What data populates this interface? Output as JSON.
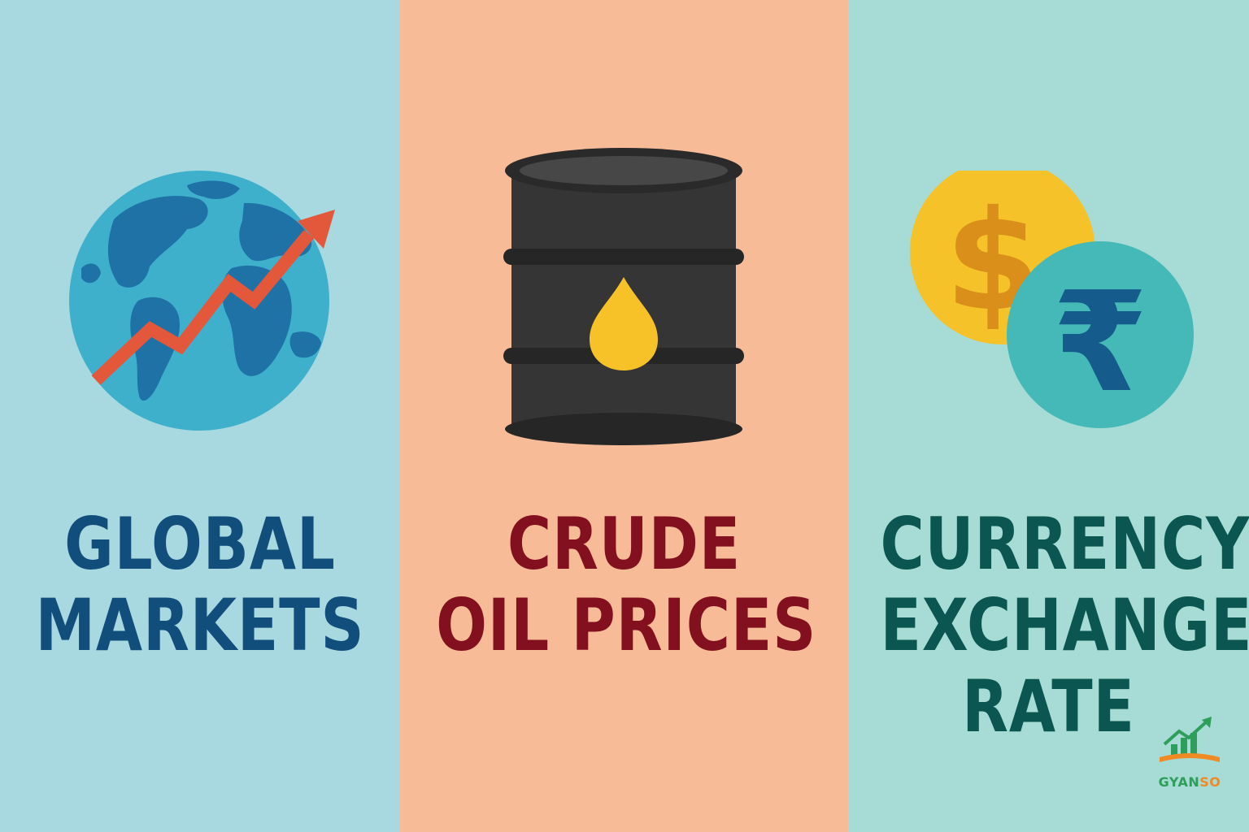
{
  "panels": [
    {
      "id": "global-markets",
      "background": "#a8d9e0",
      "icon": "globe-with-rising-arrow-icon",
      "title_lines": [
        "GLOBAL",
        "MARKETS"
      ],
      "title_color": "#124e7c"
    },
    {
      "id": "crude-oil",
      "background": "#f7bc97",
      "icon": "oil-barrel-icon",
      "title_lines": [
        "CRUDE",
        "OIL PRICES"
      ],
      "title_color": "#82101f"
    },
    {
      "id": "currency",
      "background": "#a6dbd6",
      "icon": "dollar-rupee-coins-icon",
      "title_lines": [
        "CURRENCY",
        "EXCHANGE",
        "RATE"
      ],
      "title_color": "#0b5650"
    }
  ],
  "coins": {
    "dollar_symbol": "$",
    "rupee_symbol": "₹"
  },
  "logo": {
    "text_part1": "GYAN",
    "text_part2": "SO",
    "icon": "growth-book-logo-icon"
  },
  "colors": {
    "globe_ocean": "#3fb0cc",
    "globe_land": "#1f72a6",
    "arrow": "#e3573a",
    "barrel": "#353535",
    "oil_drop": "#f6c228",
    "dollar_coin": "#f5c22a",
    "rupee_coin": "#45b9b7"
  }
}
